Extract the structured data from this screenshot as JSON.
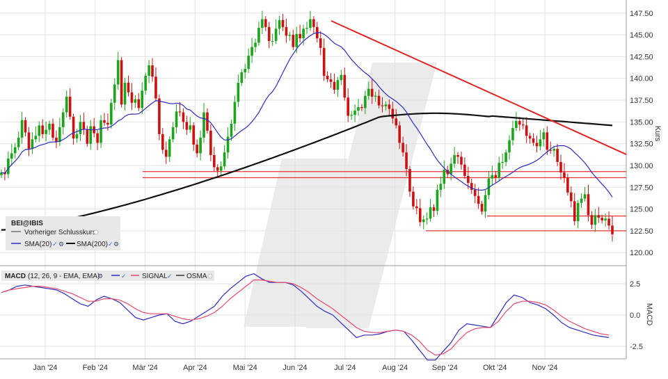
{
  "chart_data": {
    "type": "candlestick",
    "symbol_label": "BEI@IBIS",
    "legend": [
      {
        "label": "Vorheriger Schlusskurs",
        "color": "#333333"
      },
      {
        "label": "SMA(20)",
        "color": "#2b2bbf"
      },
      {
        "label": "SMA(200)",
        "color": "#111111"
      }
    ],
    "price_axis": {
      "label": "Kurs",
      "min": 118.5,
      "max": 149.0,
      "ticks": [
        "147.50",
        "145.00",
        "142.50",
        "140.00",
        "137.50",
        "135.00",
        "132.50",
        "130.00",
        "127.50",
        "125.00",
        "122.50",
        "120.00"
      ]
    },
    "x_labels": [
      "Jan '24",
      "Feb '24",
      "Mär '24",
      "Apr '24",
      "Mai '24",
      "Jun '24",
      "Jul '24",
      "Aug '24",
      "Sep '24",
      "Okt '24",
      "Nov '24"
    ],
    "closes": [
      129.2,
      129.0,
      130.8,
      131.4,
      132.1,
      133.2,
      135.2,
      133.8,
      131.9,
      133.0,
      133.4,
      134.6,
      133.6,
      134.1,
      134.8,
      133.2,
      132.7,
      134.4,
      136.1,
      137.9,
      135.6,
      133.1,
      133.6,
      135.0,
      134.1,
      132.5,
      134.5,
      133.7,
      132.6,
      135.2,
      134.9,
      134.7,
      137.2,
      139.3,
      142.1,
      137.0,
      139.5,
      138.4,
      137.2,
      137.6,
      136.6,
      138.6,
      140.3,
      141.5,
      140.2,
      137.7,
      133.6,
      131.8,
      131.0,
      133.0,
      134.4,
      136.2,
      136.1,
      135.0,
      134.1,
      134.6,
      132.4,
      131.4,
      133.2,
      136.1,
      134.0,
      131.2,
      129.8,
      129.4,
      129.9,
      131.5,
      133.3,
      134.8,
      137.3,
      139.5,
      140.7,
      141.1,
      142.6,
      143.6,
      144.1,
      145.8,
      146.8,
      145.9,
      144.3,
      144.3,
      145.7,
      146.7,
      145.9,
      144.9,
      145.0,
      143.6,
      145.1,
      144.6,
      145.7,
      145.8,
      146.8,
      145.9,
      144.6,
      143.5,
      140.3,
      139.9,
      139.6,
      138.7,
      139.8,
      140.4,
      137.8,
      135.7,
      135.8,
      136.3,
      136.7,
      136.6,
      138.0,
      138.8,
      137.9,
      138.0,
      136.9,
      136.8,
      137.0,
      136.5,
      135.4,
      134.6,
      132.6,
      131.5,
      129.6,
      127.0,
      125.3,
      125.1,
      123.5,
      123.8,
      123.9,
      125.2,
      124.8,
      127.2,
      127.9,
      129.5,
      129.0,
      130.2,
      131.2,
      131.0,
      130.1,
      128.8,
      128.0,
      127.2,
      126.5,
      125.6,
      124.7,
      126.6,
      128.5,
      128.9,
      128.6,
      130.3,
      130.4,
      131.5,
      132.9,
      134.3,
      135.1,
      134.7,
      134.6,
      133.4,
      133.1,
      132.6,
      132.2,
      133.0,
      133.8,
      131.8,
      131.7,
      131.9,
      130.4,
      129.2,
      128.6,
      126.9,
      125.9,
      123.6,
      125.7,
      126.2,
      126.7,
      124.3,
      123.2,
      124.3,
      124.0,
      123.7,
      123.9,
      123.1,
      122.1
    ],
    "sma20_overlay": true,
    "sma200_overlay": true,
    "macd_panel": {
      "title": "MACD",
      "params": "(12, 26, 9 - EMA, EMA)",
      "series_labels": [
        "SIGNAL",
        "OSMA"
      ],
      "axis_label": "MACD",
      "min": -3.5,
      "max": 3.5,
      "ticks": [
        "2.5",
        "0.0",
        "-2.5"
      ],
      "macd": [
        1.8,
        2.0,
        2.3,
        2.4,
        2.3,
        2.2,
        2.1,
        2.0,
        1.7,
        1.3,
        0.9,
        0.7,
        1.2,
        1.5,
        1.3,
        1.0,
        0.4,
        -0.2,
        -0.4,
        -0.2,
        0.0,
        0.1,
        -0.5,
        -0.7,
        -0.5,
        -0.1,
        0.3,
        0.7,
        1.5,
        2.1,
        2.6,
        3.1,
        3.3,
        2.9,
        2.6,
        2.6,
        2.6,
        2.4,
        1.9,
        1.3,
        0.7,
        0.3,
        0.0,
        -0.6,
        -1.2,
        -1.8,
        -1.6,
        -1.6,
        -1.5,
        -1.3,
        -1.2,
        -1.3,
        -2.0,
        -2.8,
        -3.6,
        -3.6,
        -2.9,
        -2.2,
        -1.2,
        -0.7,
        -0.8,
        -0.9,
        -1.0,
        0.0,
        1.0,
        1.6,
        1.4,
        1.0,
        0.8,
        0.5,
        0.0,
        -0.6,
        -1.0,
        -1.2,
        -1.4,
        -1.6,
        -1.7,
        -1.8
      ],
      "signal": [
        1.8,
        2.0,
        2.1,
        2.2,
        2.3,
        2.3,
        2.2,
        2.1,
        1.9,
        1.7,
        1.4,
        1.1,
        1.1,
        1.3,
        1.3,
        1.2,
        0.9,
        0.5,
        0.2,
        0.1,
        0.1,
        0.1,
        -0.1,
        -0.3,
        -0.4,
        -0.3,
        -0.1,
        0.2,
        0.7,
        1.3,
        1.8,
        2.3,
        2.8,
        2.8,
        2.7,
        2.6,
        2.6,
        2.5,
        2.2,
        1.8,
        1.3,
        0.9,
        0.5,
        0.0,
        -0.5,
        -1.0,
        -1.3,
        -1.4,
        -1.4,
        -1.3,
        -1.2,
        -1.3,
        -1.6,
        -2.1,
        -2.8,
        -3.2,
        -3.1,
        -2.7,
        -2.0,
        -1.4,
        -1.1,
        -1.0,
        -1.0,
        -0.5,
        0.3,
        0.9,
        1.1,
        1.1,
        1.0,
        0.8,
        0.4,
        -0.1,
        -0.5,
        -0.8,
        -1.1,
        -1.3,
        -1.5,
        -1.6
      ]
    },
    "colors": {
      "up": "#1aa51a",
      "down": "#cc1111",
      "sma20": "#2b2bbf",
      "sma200": "#111111",
      "trend": "#e02424",
      "hline": "#e83030",
      "macd": "#2b2bbf",
      "signal": "#e64a6a",
      "grid": "#e2e2e2",
      "watermark": "#e6e6e6"
    }
  }
}
